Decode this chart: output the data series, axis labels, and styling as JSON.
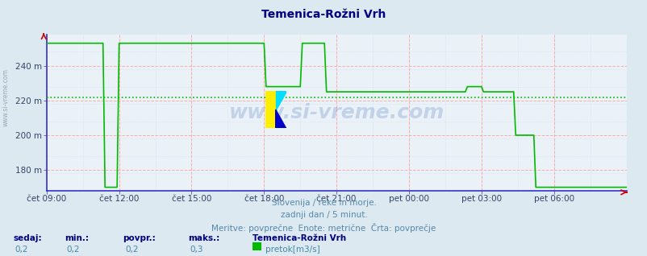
{
  "title": "Temenica-Rožni Vrh",
  "bg_color": "#dce9f0",
  "plot_bg_color": "#eaf2f8",
  "grid_color_red": "#ffaaaa",
  "grid_color_gray": "#ccddee",
  "line_color": "#00bb00",
  "border_color_left": "#3333cc",
  "border_color_bottom": "#3333cc",
  "avg_line_color": "#00bb00",
  "avg_line_value": 222,
  "y_min": 168,
  "y_max": 258,
  "y_ticks": [
    180,
    200,
    220,
    240
  ],
  "y_tick_labels": [
    "180 m",
    "200 m",
    "220 m",
    "240 m"
  ],
  "x_tick_labels": [
    "čet 09:00",
    "čet 12:00",
    "čet 15:00",
    "čet 18:00",
    "čet 21:00",
    "pet 00:00",
    "pet 03:00",
    "pet 06:00"
  ],
  "x_ticks": [
    0,
    36,
    72,
    108,
    144,
    180,
    216,
    252
  ],
  "total_points": 289,
  "subtitle1": "Slovenija / reke in morje.",
  "subtitle2": "zadnji dan / 5 minut.",
  "subtitle3": "Meritve: povprečne  Enote: metrične  Črta: povprečje",
  "legend_station": "Temenica-Rožni Vrh",
  "legend_series": "pretok[m3/s]",
  "stat_labels": [
    "sedaj:",
    "min.:",
    "povpr.:",
    "maks.:"
  ],
  "stat_values": [
    "0,2",
    "0,2",
    "0,2",
    "0,3"
  ],
  "watermark": "www.si-vreme.com",
  "title_color": "#000080",
  "subtitle_color": "#5588aa",
  "stat_label_color": "#000080",
  "stat_value_color": "#4488aa",
  "segments": [
    [
      0,
      253
    ],
    [
      28,
      253
    ],
    [
      29,
      170
    ],
    [
      35,
      170
    ],
    [
      36,
      253
    ],
    [
      72,
      253
    ],
    [
      73,
      253
    ],
    [
      108,
      253
    ],
    [
      109,
      228
    ],
    [
      126,
      228
    ],
    [
      127,
      253
    ],
    [
      138,
      253
    ],
    [
      139,
      225
    ],
    [
      179,
      225
    ],
    [
      180,
      225
    ],
    [
      210,
      225
    ],
    [
      211,
      228
    ],
    [
      217,
      228
    ],
    [
      218,
      225
    ],
    [
      232,
      225
    ],
    [
      233,
      200
    ],
    [
      240,
      200
    ],
    [
      241,
      170
    ],
    [
      288,
      170
    ]
  ]
}
